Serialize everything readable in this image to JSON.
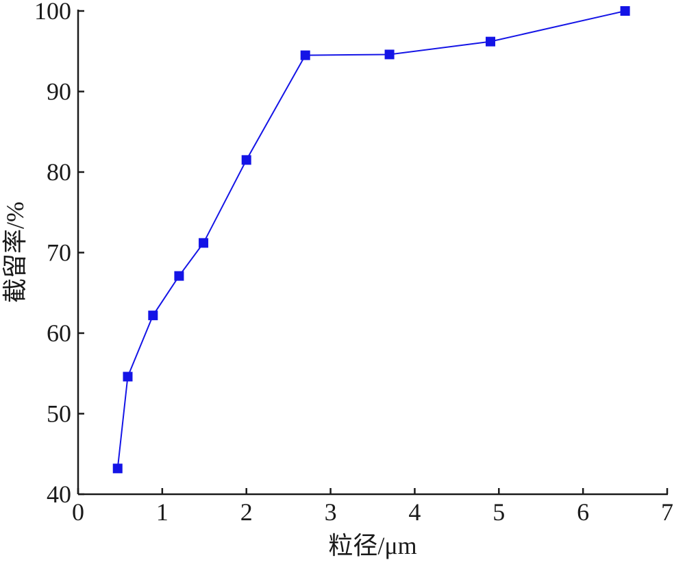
{
  "chart_data": {
    "type": "line",
    "x_label": "粒径/μm",
    "y_label": "截留率/%",
    "x": [
      0.47,
      0.59,
      0.89,
      1.2,
      1.49,
      2.0,
      2.7,
      3.7,
      4.9,
      6.5
    ],
    "series": [
      {
        "color": "#1414e6",
        "values": [
          43.2,
          54.6,
          62.2,
          67.1,
          71.2,
          81.5,
          94.5,
          94.6,
          96.2,
          100
        ]
      }
    ],
    "xlim": [
      0,
      7
    ],
    "xticks": [
      0,
      1,
      2,
      3,
      4,
      5,
      6,
      7
    ],
    "ylim": [
      40,
      100
    ],
    "yticks": [
      40,
      50,
      60,
      70,
      80,
      90,
      100
    ]
  }
}
